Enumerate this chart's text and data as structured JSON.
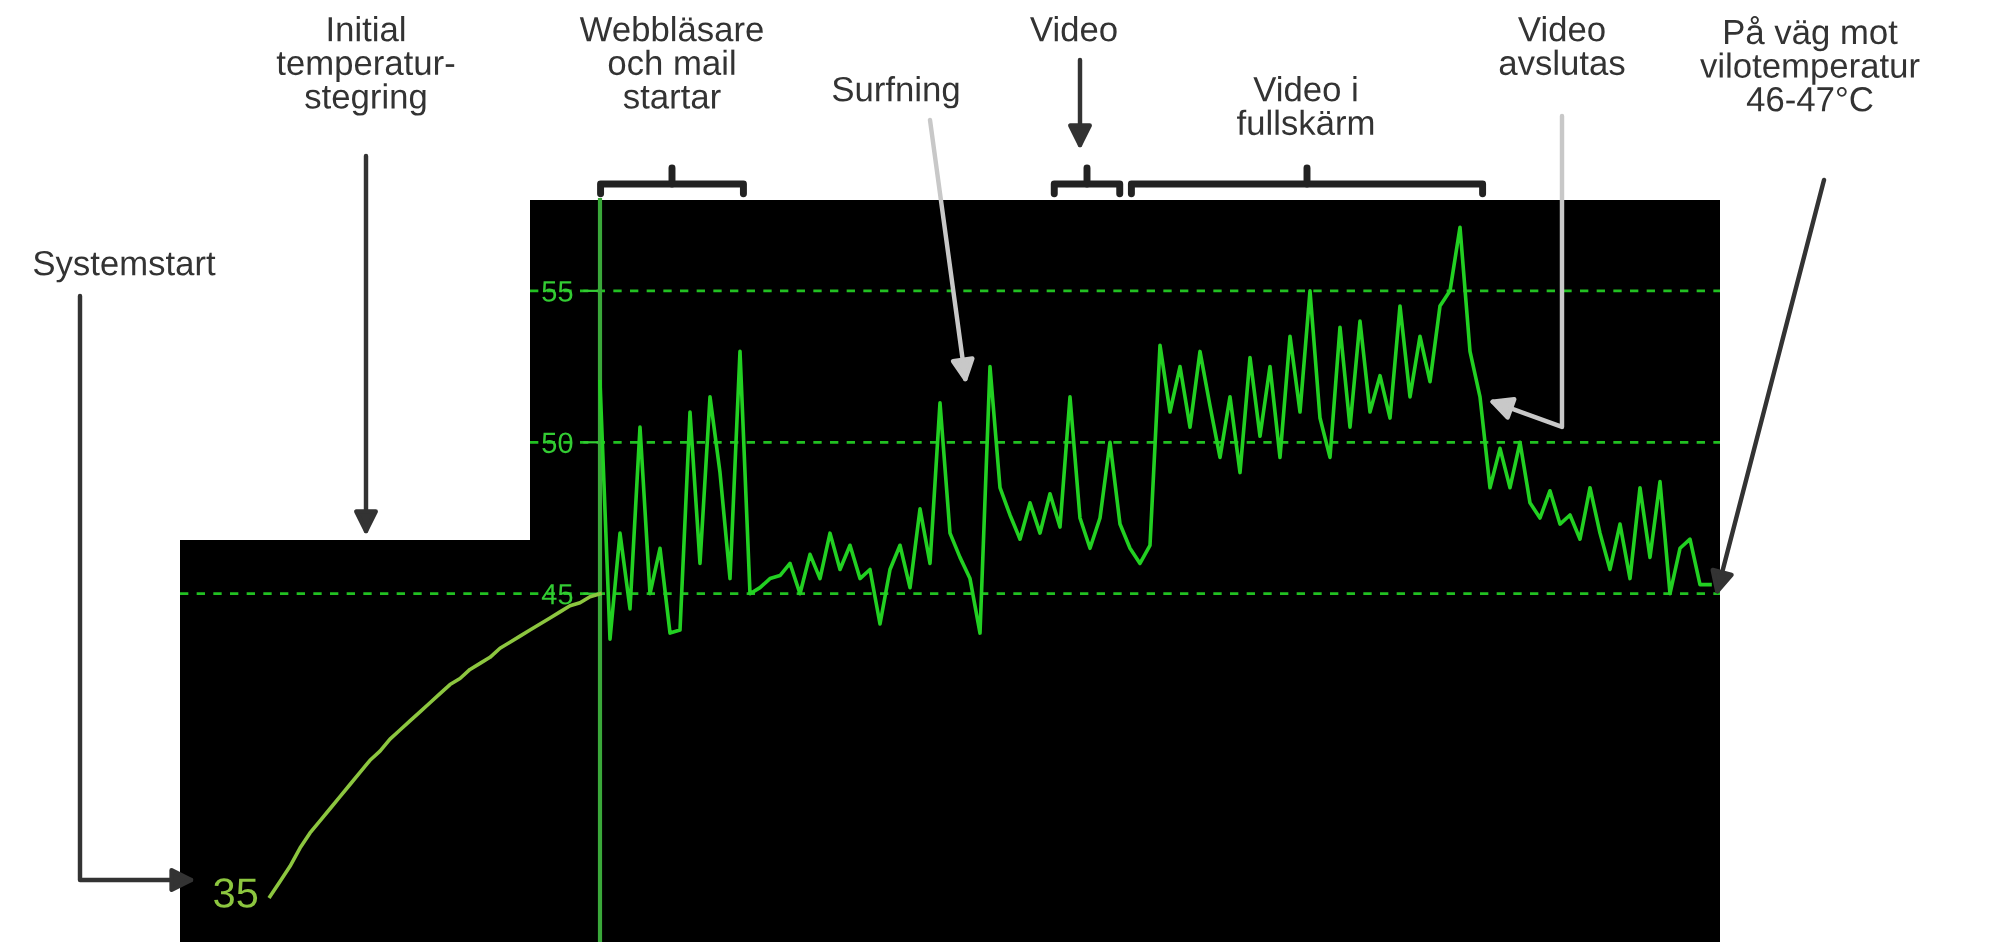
{
  "chart_data": {
    "type": "line",
    "categories": [
      null,
      null,
      null,
      null,
      null,
      null,
      null,
      null,
      null,
      null,
      null,
      null,
      null,
      null,
      null,
      null,
      null,
      null,
      null,
      null,
      null,
      null,
      null,
      null,
      null,
      null,
      null,
      null,
      null,
      null,
      null,
      null,
      null,
      null,
      null,
      null,
      null,
      null,
      null,
      null,
      null,
      null,
      null,
      null,
      null,
      null,
      null,
      null,
      null,
      null,
      null,
      null,
      null,
      null,
      null,
      null,
      null,
      null,
      null,
      null,
      null,
      null,
      null,
      null,
      null,
      null,
      null,
      null,
      null,
      null,
      null,
      null,
      null,
      null,
      null,
      null,
      null,
      null,
      null,
      null,
      null,
      null,
      null,
      null,
      null,
      null,
      null,
      null,
      null,
      null,
      null,
      null,
      null,
      null,
      null,
      null,
      null,
      null,
      null,
      null,
      null,
      null,
      null,
      null,
      null,
      null,
      null,
      null,
      null,
      null,
      null,
      null,
      null,
      null,
      null,
      null,
      null,
      null,
      null,
      null,
      null,
      null,
      null,
      null,
      null,
      null,
      null,
      null,
      null,
      null,
      null,
      null,
      null,
      null,
      null,
      null,
      null,
      null,
      null,
      null,
      null,
      null,
      null,
      null,
      null
    ],
    "series": [
      {
        "color": "#8cc63f",
        "values": [
          35,
          35.5,
          36,
          36.6,
          37.1,
          37.5,
          37.9,
          38.3,
          38.7,
          39.1,
          39.5,
          39.8,
          40.2,
          40.5,
          40.8,
          41.1,
          41.4,
          41.7,
          42,
          42.2,
          42.5,
          42.7,
          42.9,
          43.2,
          43.4,
          43.6,
          43.8,
          44,
          44.2,
          44.4,
          44.6,
          44.7,
          44.9,
          45,
          null,
          null,
          null,
          null,
          null,
          null,
          null,
          null,
          null,
          null,
          null,
          null,
          null,
          null,
          null,
          null,
          null,
          null,
          null,
          null,
          null,
          null,
          null,
          null,
          null,
          null,
          null,
          null,
          null,
          null,
          null,
          null,
          null,
          null,
          null,
          null,
          null,
          null,
          null,
          null,
          null,
          null,
          null,
          null,
          null,
          null,
          null,
          null,
          null,
          null,
          null,
          null,
          null,
          null,
          null,
          null,
          null,
          null,
          null,
          null,
          null,
          null,
          null,
          null,
          null,
          null,
          null,
          null,
          null,
          null,
          null,
          null,
          null,
          null,
          null,
          null,
          null,
          null,
          null,
          null,
          null,
          null,
          null,
          null,
          null,
          null,
          null,
          null,
          null,
          null,
          null,
          null,
          null,
          null,
          null,
          null,
          null,
          null,
          null,
          null,
          null,
          null,
          null,
          null,
          null,
          null,
          null,
          null,
          null,
          null,
          null
        ],
        "value_labels": [
          "35",
          null,
          null,
          null,
          null,
          null,
          null,
          null,
          null,
          null,
          null,
          null,
          null,
          null,
          null,
          null,
          null,
          null,
          null,
          null,
          null,
          null,
          null,
          null,
          null,
          null,
          null,
          null,
          null,
          null,
          null,
          null,
          null,
          null,
          null,
          null,
          null,
          null,
          null,
          null,
          null,
          null,
          null,
          null,
          null,
          null,
          null,
          null,
          null,
          null,
          null,
          null,
          null,
          null,
          null,
          null,
          null,
          null,
          null,
          null,
          null,
          null,
          null,
          null,
          null,
          null,
          null,
          null,
          null,
          null,
          null,
          null,
          null,
          null,
          null,
          null,
          null,
          null,
          null,
          null,
          null,
          null,
          null,
          null,
          null,
          null,
          null,
          null,
          null,
          null,
          null,
          null,
          null,
          null,
          null,
          null,
          null,
          null,
          null,
          null,
          null,
          null,
          null,
          null,
          null,
          null,
          null,
          null,
          null,
          null,
          null,
          null,
          null,
          null,
          null,
          null,
          null,
          null,
          null,
          null,
          null,
          null,
          null,
          null,
          null,
          null,
          null,
          null,
          null,
          null,
          null,
          null,
          null,
          null,
          null,
          null,
          null,
          null,
          null,
          null,
          null,
          null,
          null,
          null,
          null
        ]
      },
      {
        "color": "#22d022",
        "values": [
          null,
          null,
          null,
          null,
          null,
          null,
          null,
          null,
          null,
          null,
          null,
          null,
          null,
          null,
          null,
          null,
          null,
          null,
          null,
          null,
          null,
          null,
          null,
          null,
          null,
          null,
          null,
          null,
          null,
          null,
          null,
          null,
          null,
          52,
          43.5,
          47,
          44.5,
          50.5,
          45,
          46.5,
          43.7,
          43.8,
          51,
          46,
          51.5,
          49,
          45.5,
          53,
          45,
          45.2,
          45.5,
          45.6,
          46,
          45,
          46.3,
          45.5,
          47,
          45.8,
          46.6,
          45.5,
          45.8,
          44,
          45.8,
          46.6,
          45.2,
          47.8,
          46,
          51.3,
          47,
          46.2,
          45.5,
          43.7,
          52.5,
          48.5,
          47.6,
          46.8,
          48,
          47,
          48.3,
          47.2,
          51.5,
          47.5,
          46.5,
          47.5,
          50,
          47.3,
          46.5,
          46,
          46.6,
          53.2,
          51,
          52.5,
          50.5,
          53,
          51.2,
          49.5,
          51.5,
          49,
          52.8,
          50.2,
          52.5,
          49.5,
          53.5,
          51,
          55,
          50.8,
          49.5,
          53.8,
          50.5,
          54,
          51,
          52.2,
          50.8,
          54.5,
          51.5,
          53.5,
          52,
          54.5,
          55,
          57.1,
          53,
          51.5,
          48.5,
          49.8,
          48.5,
          50,
          48,
          47.5,
          48.4,
          47.3,
          47.6,
          46.8,
          48.5,
          47,
          45.8,
          47.3,
          45.5,
          48.5,
          46.2,
          48.7,
          45,
          46.5,
          46.8,
          45.3,
          45.3
        ]
      }
    ],
    "ylim": [
      33.5,
      58
    ],
    "yticks": [
      45,
      50,
      55
    ],
    "grid": "y",
    "tick_labels": "y",
    "annotations": [
      "Systemstart",
      "Initial\ntemperatur-\nstegring",
      "Webbläsare\noch mail\nstartar",
      "Surfning",
      "Video",
      "Video i\nfullskärm",
      "Video\navslutas",
      "På väg mot\nvilotemperatur\n46-47°C"
    ]
  }
}
